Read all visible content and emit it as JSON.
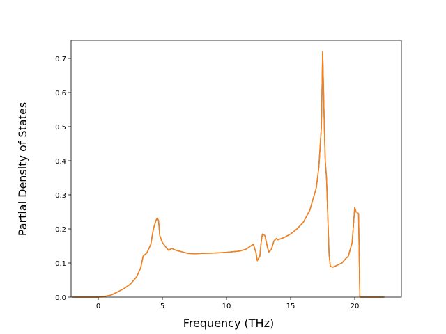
{
  "chart_data": {
    "type": "line",
    "xlabel": "Frequency (THz)",
    "ylabel": "Partial Density of States",
    "x": [
      -2,
      0,
      0.5,
      1,
      1.5,
      2,
      2.5,
      3,
      3.3,
      3.5,
      3.8,
      4.1,
      4.3,
      4.5,
      4.6,
      4.7,
      4.8,
      5,
      5.3,
      5.5,
      5.7,
      6,
      6.5,
      7,
      7.5,
      8,
      9,
      10,
      11,
      11.5,
      11.9,
      12.1,
      12.3,
      12.4,
      12.6,
      12.7,
      12.8,
      13,
      13.2,
      13.3,
      13.5,
      13.7,
      13.9,
      14,
      14.5,
      15,
      15.5,
      16,
      16.5,
      17,
      17.2,
      17.4,
      17.5,
      17.6,
      17.7,
      17.8,
      18,
      18.1,
      18.3,
      18.6,
      19,
      19.3,
      19.5,
      19.8,
      20,
      20.1,
      20.3,
      20.4,
      21,
      22.3
    ],
    "series": [
      {
        "color": "#1f77b4",
        "values": [
          0,
          0,
          0.002,
          0.006,
          0.015,
          0.025,
          0.038,
          0.06,
          0.085,
          0.12,
          0.13,
          0.155,
          0.2,
          0.225,
          0.232,
          0.225,
          0.18,
          0.16,
          0.145,
          0.137,
          0.143,
          0.138,
          0.133,
          0.128,
          0.127,
          0.128,
          0.129,
          0.131,
          0.135,
          0.14,
          0.15,
          0.155,
          0.13,
          0.107,
          0.12,
          0.16,
          0.185,
          0.18,
          0.145,
          0.132,
          0.14,
          0.165,
          0.172,
          0.168,
          0.175,
          0.185,
          0.2,
          0.22,
          0.255,
          0.32,
          0.38,
          0.5,
          0.72,
          0.55,
          0.4,
          0.35,
          0.125,
          0.09,
          0.088,
          0.093,
          0.1,
          0.113,
          0.12,
          0.16,
          0.263,
          0.25,
          0.245,
          0,
          0,
          0
        ]
      },
      {
        "color": "#ff7f0e",
        "values": [
          0,
          0,
          0.002,
          0.006,
          0.015,
          0.025,
          0.038,
          0.06,
          0.085,
          0.12,
          0.13,
          0.155,
          0.2,
          0.225,
          0.232,
          0.225,
          0.18,
          0.16,
          0.145,
          0.137,
          0.143,
          0.138,
          0.133,
          0.128,
          0.127,
          0.128,
          0.129,
          0.131,
          0.135,
          0.14,
          0.15,
          0.155,
          0.13,
          0.107,
          0.12,
          0.16,
          0.185,
          0.18,
          0.145,
          0.132,
          0.14,
          0.165,
          0.172,
          0.168,
          0.175,
          0.185,
          0.2,
          0.22,
          0.255,
          0.32,
          0.38,
          0.5,
          0.72,
          0.55,
          0.4,
          0.35,
          0.125,
          0.09,
          0.088,
          0.093,
          0.1,
          0.113,
          0.12,
          0.16,
          0.263,
          0.25,
          0.245,
          0,
          0,
          0
        ]
      }
    ],
    "xlim": [
      -2.12,
      23.64
    ],
    "ylim": [
      0,
      0.753
    ],
    "xticks": [
      0,
      5,
      10,
      15,
      20
    ],
    "yticks": [
      {
        "value": 0,
        "label": "0.0"
      },
      0.1,
      0.2,
      0.3,
      0.4,
      0.5,
      0.6,
      0.7
    ]
  }
}
